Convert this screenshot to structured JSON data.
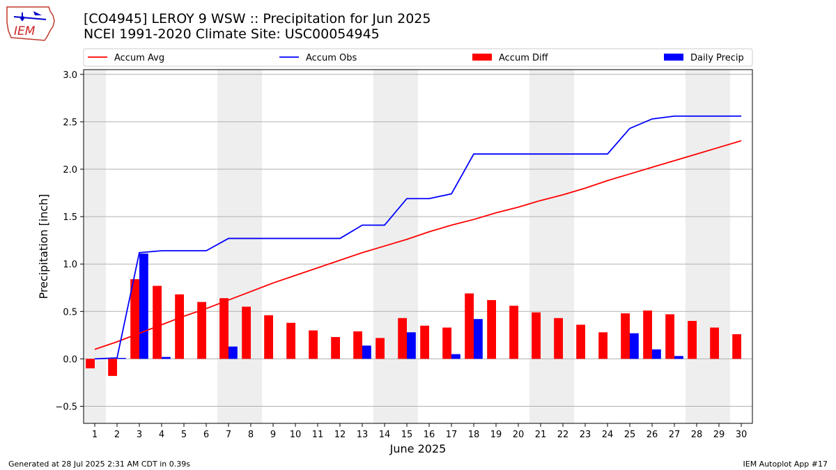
{
  "header": {
    "title_line1": "[CO4945] LEROY 9 WSW :: Precipitation for Jun 2025",
    "title_line2": "NCEI 1991-2020 Climate Site: USC00054945"
  },
  "logo": {
    "text": "IEM",
    "icon": "iem-iowa-logo-icon"
  },
  "footer": {
    "generated": "Generated at 28 Jul 2025 2:31 AM CDT in 0.39s",
    "app": "IEM Autoplot App #17"
  },
  "chart_data": {
    "type": "bar",
    "xlabel": "June 2025",
    "ylabel": "Precipitation [inch]",
    "ylim": [
      -0.68,
      3.05
    ],
    "xlim": [
      0.5,
      30.5
    ],
    "yticks": [
      -0.5,
      0.0,
      0.5,
      1.0,
      1.5,
      2.0,
      2.5,
      3.0
    ],
    "ytick_labels": [
      "−0.5",
      "0.0",
      "0.5",
      "1.0",
      "1.5",
      "2.0",
      "2.5",
      "3.0"
    ],
    "grid": "horizontal",
    "legend_position": "top",
    "days": [
      1,
      2,
      3,
      4,
      5,
      6,
      7,
      8,
      9,
      10,
      11,
      12,
      13,
      14,
      15,
      16,
      17,
      18,
      19,
      20,
      21,
      22,
      23,
      24,
      25,
      26,
      27,
      28,
      29,
      30
    ],
    "weekend_shading": [
      [
        0.5,
        1.5
      ],
      [
        6.5,
        8.5
      ],
      [
        13.5,
        15.5
      ],
      [
        20.5,
        22.5
      ],
      [
        27.5,
        29.5
      ]
    ],
    "colors": {
      "avg": "#ff0000",
      "obs": "#0000ff",
      "diff": "#ff0000",
      "daily": "#0000ff",
      "shade": "#eeeeee",
      "grid": "#b0b0b0"
    },
    "legend": [
      "Accum Avg",
      "Accum Obs",
      "Accum Diff",
      "Daily Precip"
    ],
    "series": [
      {
        "name": "Accum Avg",
        "kind": "line",
        "values": [
          0.1,
          0.18,
          0.27,
          0.36,
          0.45,
          0.53,
          0.62,
          0.71,
          0.8,
          0.88,
          0.96,
          1.04,
          1.12,
          1.19,
          1.26,
          1.34,
          1.41,
          1.47,
          1.54,
          1.6,
          1.67,
          1.73,
          1.8,
          1.88,
          1.95,
          2.02,
          2.09,
          2.16,
          2.23,
          2.3
        ]
      },
      {
        "name": "Accum Obs",
        "kind": "line",
        "values": [
          0.0,
          0.01,
          1.12,
          1.14,
          1.14,
          1.14,
          1.27,
          1.27,
          1.27,
          1.27,
          1.27,
          1.27,
          1.41,
          1.41,
          1.69,
          1.69,
          1.74,
          2.16,
          2.16,
          2.16,
          2.16,
          2.16,
          2.16,
          2.16,
          2.43,
          2.53,
          2.56,
          2.56,
          2.56,
          2.56
        ]
      },
      {
        "name": "Accum Diff",
        "kind": "bar",
        "values": [
          -0.1,
          -0.18,
          0.84,
          0.77,
          0.68,
          0.6,
          0.64,
          0.55,
          0.46,
          0.38,
          0.3,
          0.23,
          0.29,
          0.22,
          0.43,
          0.35,
          0.33,
          0.69,
          0.62,
          0.56,
          0.49,
          0.43,
          0.36,
          0.28,
          0.48,
          0.51,
          0.47,
          0.4,
          0.33,
          0.26
        ]
      },
      {
        "name": "Daily Precip",
        "kind": "bar",
        "values": [
          0.0,
          0.01,
          1.11,
          0.02,
          0.0,
          0.0,
          0.13,
          0.0,
          0.0,
          0.0,
          0.0,
          0.0,
          0.14,
          0.0,
          0.28,
          0.0,
          0.05,
          0.42,
          0.0,
          0.0,
          0.0,
          0.0,
          0.0,
          0.0,
          0.27,
          0.1,
          0.03,
          0.0,
          0.0,
          0.0
        ]
      }
    ]
  }
}
